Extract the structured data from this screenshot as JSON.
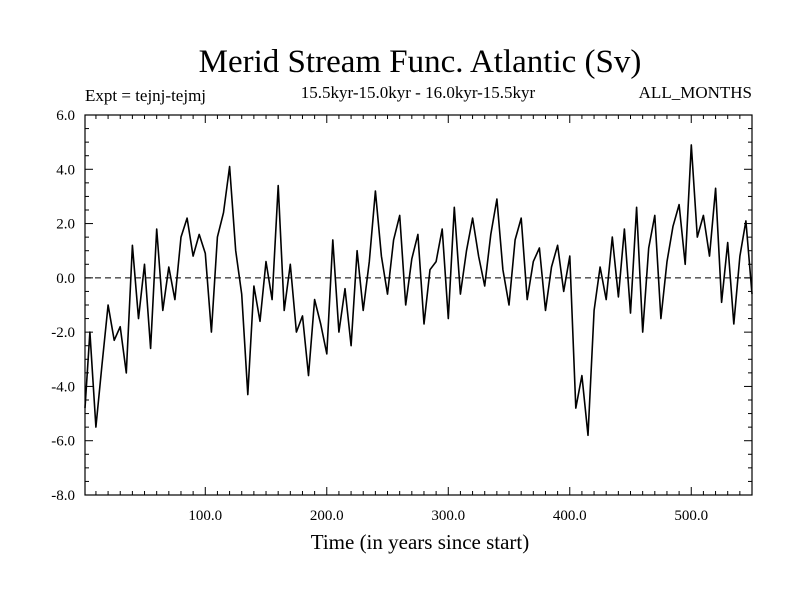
{
  "chart_data": {
    "type": "line",
    "title": "Merid Stream Func. Atlantic (Sv)",
    "subtitle": "15.5kyr-15.0kyr - 16.0kyr-15.5kyr",
    "left_label": "Expt = tejnj-tejmj",
    "right_label": "ALL_MONTHS",
    "xlabel": "Time (in years since start)",
    "ylabel": "",
    "xlim": [
      1,
      550
    ],
    "ylim": [
      -8.0,
      6.0
    ],
    "x_ticks": [
      100,
      200,
      300,
      400,
      500
    ],
    "x_tick_labels": [
      "100.0",
      "200.0",
      "300.0",
      "400.0",
      "500.0"
    ],
    "y_ticks": [
      -8,
      -6,
      -4,
      -2,
      0,
      2,
      4,
      6
    ],
    "y_tick_labels": [
      "-8.0",
      "-6.0",
      "-4.0",
      "-2.0",
      "0.0",
      "2.0",
      "4.0",
      "6.0"
    ],
    "zero_line": "dashed",
    "series": [
      {
        "name": "Merid Stream Func. Atlantic",
        "x": [
          1,
          5,
          10,
          15,
          20,
          25,
          30,
          35,
          40,
          45,
          50,
          55,
          60,
          65,
          70,
          75,
          80,
          85,
          90,
          95,
          100,
          105,
          110,
          115,
          120,
          125,
          130,
          135,
          140,
          145,
          150,
          155,
          160,
          165,
          170,
          175,
          180,
          185,
          190,
          195,
          200,
          205,
          210,
          215,
          220,
          225,
          230,
          235,
          240,
          245,
          250,
          255,
          260,
          265,
          270,
          275,
          280,
          285,
          290,
          295,
          300,
          305,
          310,
          315,
          320,
          325,
          330,
          335,
          340,
          345,
          350,
          355,
          360,
          365,
          370,
          375,
          380,
          385,
          390,
          395,
          400,
          405,
          410,
          415,
          420,
          425,
          430,
          435,
          440,
          445,
          450,
          455,
          460,
          465,
          470,
          475,
          480,
          485,
          490,
          495,
          500,
          505,
          510,
          515,
          520,
          525,
          530,
          535,
          540,
          545,
          550
        ],
        "values": [
          -4.8,
          -2.0,
          -5.5,
          -3.2,
          -1.0,
          -2.3,
          -1.8,
          -3.5,
          1.2,
          -1.5,
          0.5,
          -2.6,
          1.8,
          -1.2,
          0.4,
          -0.8,
          1.5,
          2.2,
          0.8,
          1.6,
          0.9,
          -2.0,
          1.5,
          2.4,
          4.1,
          1.0,
          -0.6,
          -4.3,
          -0.3,
          -1.6,
          0.6,
          -0.8,
          3.4,
          -1.2,
          0.5,
          -2.0,
          -1.4,
          -3.6,
          -0.8,
          -1.7,
          -2.8,
          1.4,
          -2.0,
          -0.4,
          -2.5,
          1.0,
          -1.2,
          0.6,
          3.2,
          0.8,
          -0.6,
          1.4,
          2.3,
          -1.0,
          0.7,
          1.6,
          -1.7,
          0.3,
          0.6,
          1.8,
          -1.5,
          2.6,
          -0.6,
          1.0,
          2.2,
          0.8,
          -0.3,
          1.6,
          2.9,
          0.3,
          -1.0,
          1.4,
          2.2,
          -0.8,
          0.6,
          1.1,
          -1.2,
          0.4,
          1.2,
          -0.5,
          0.8,
          -4.8,
          -3.6,
          -5.8,
          -1.2,
          0.4,
          -0.8,
          1.5,
          -0.7,
          1.8,
          -1.3,
          2.6,
          -2.0,
          1.1,
          2.3,
          -1.5,
          0.6,
          1.9,
          2.7,
          0.5,
          4.9,
          1.5,
          2.3,
          0.8,
          3.3,
          -0.9,
          1.3,
          -1.7,
          0.8,
          2.1,
          -0.6
        ]
      }
    ]
  }
}
